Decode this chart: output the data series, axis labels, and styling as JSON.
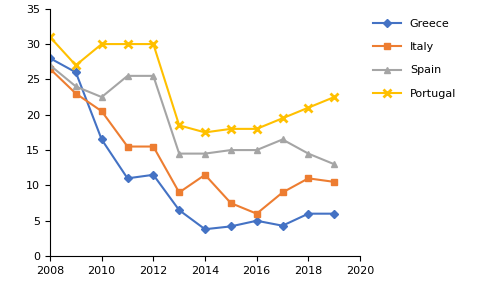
{
  "years": [
    2008,
    2009,
    2010,
    2011,
    2012,
    2013,
    2014,
    2015,
    2016,
    2017,
    2018,
    2019
  ],
  "greece": [
    28,
    26,
    16.5,
    11,
    11.5,
    6.5,
    3.8,
    4.2,
    5.0,
    4.3,
    6.0,
    6.0
  ],
  "italy": [
    26.5,
    23,
    20.5,
    15.5,
    15.5,
    9.0,
    11.5,
    7.5,
    6.0,
    9.0,
    11.0,
    10.5
  ],
  "spain": [
    27,
    24,
    22.5,
    25.5,
    25.5,
    14.5,
    14.5,
    15.0,
    15.0,
    16.5,
    14.5,
    13.0
  ],
  "portugal": [
    31,
    27,
    30.0,
    30.0,
    30.0,
    18.5,
    17.5,
    18.0,
    18.0,
    19.5,
    21.0,
    22.5
  ],
  "greece_color": "#4472c4",
  "italy_color": "#ed7d31",
  "spain_color": "#a5a5a5",
  "portugal_color": "#ffc000",
  "ylim": [
    0,
    35
  ],
  "xlim": [
    2008,
    2020
  ],
  "yticks": [
    0,
    5,
    10,
    15,
    20,
    25,
    30,
    35
  ],
  "xticks": [
    2008,
    2010,
    2012,
    2014,
    2016,
    2018,
    2020
  ],
  "legend_labels": [
    "Greece",
    "Italy",
    "Spain",
    "Portugal"
  ]
}
